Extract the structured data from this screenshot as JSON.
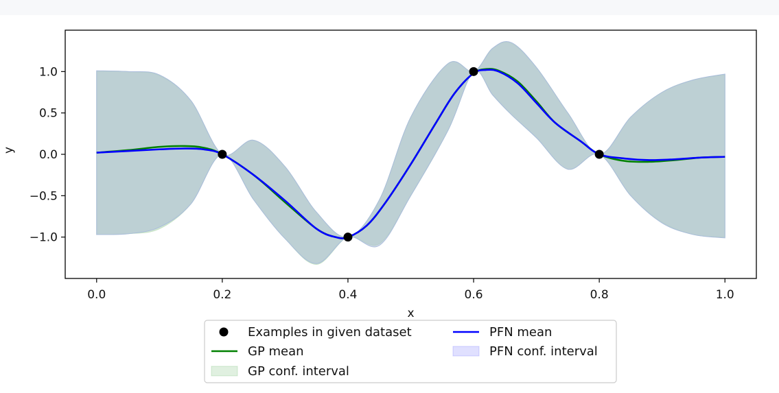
{
  "chart_data": {
    "type": "line",
    "xlabel": "x",
    "ylabel": "y",
    "xlim": [
      -0.05,
      1.05
    ],
    "ylim": [
      -1.5,
      1.5
    ],
    "x_ticks": [
      0.0,
      0.2,
      0.4,
      0.6,
      0.8,
      1.0
    ],
    "x_tick_labels": [
      "0.0",
      "0.2",
      "0.4",
      "0.6",
      "0.8",
      "1.0"
    ],
    "y_ticks": [
      1.0,
      0.5,
      0.0,
      -0.5,
      -1.0
    ],
    "y_tick_labels": [
      "1.0",
      "0.5",
      "0.0",
      "−0.5",
      "−1.0"
    ],
    "grid": false,
    "legend_position": "bottom-center (below axes)",
    "legend_columns": 2,
    "legend": [
      {
        "label": "Examples in given dataset",
        "kind": "marker",
        "color": "#000000"
      },
      {
        "label": "GP mean",
        "kind": "line",
        "color": "#008000"
      },
      {
        "label": "GP conf. interval",
        "kind": "fill",
        "color": "#008000",
        "alpha": 0.1
      },
      {
        "label": "PFN mean",
        "kind": "line",
        "color": "#0000ff"
      },
      {
        "label": "PFN conf. interval",
        "kind": "fill",
        "color": "#0000ff",
        "alpha": 0.1
      }
    ],
    "examples": {
      "x": [
        0.2,
        0.4,
        0.6,
        0.8
      ],
      "y": [
        0.0,
        -1.0,
        1.0,
        0.0
      ]
    },
    "series": [
      {
        "name": "GP mean",
        "color": "#008000",
        "x": [
          0.0,
          0.05,
          0.1,
          0.14,
          0.17,
          0.2,
          0.25,
          0.3,
          0.35,
          0.38,
          0.4,
          0.43,
          0.46,
          0.5,
          0.54,
          0.57,
          0.6,
          0.62,
          0.64,
          0.67,
          0.7,
          0.73,
          0.77,
          0.8,
          0.84,
          0.88,
          0.92,
          0.96,
          1.0
        ],
        "y": [
          0.02,
          0.05,
          0.09,
          0.1,
          0.08,
          0.0,
          -0.25,
          -0.58,
          -0.9,
          -1.0,
          -1.0,
          -0.86,
          -0.58,
          -0.12,
          0.38,
          0.74,
          0.98,
          1.03,
          1.01,
          0.88,
          0.64,
          0.38,
          0.16,
          0.0,
          -0.08,
          -0.09,
          -0.07,
          -0.04,
          -0.03
        ]
      },
      {
        "name": "PFN mean",
        "color": "#0000ff",
        "x": [
          0.0,
          0.05,
          0.1,
          0.14,
          0.17,
          0.2,
          0.25,
          0.3,
          0.35,
          0.38,
          0.4,
          0.43,
          0.46,
          0.5,
          0.54,
          0.57,
          0.6,
          0.62,
          0.64,
          0.67,
          0.7,
          0.73,
          0.77,
          0.8,
          0.84,
          0.88,
          0.92,
          0.96,
          1.0
        ],
        "y": [
          0.02,
          0.04,
          0.06,
          0.07,
          0.06,
          0.0,
          -0.25,
          -0.56,
          -0.9,
          -1.0,
          -1.0,
          -0.86,
          -0.58,
          -0.12,
          0.38,
          0.74,
          0.98,
          1.02,
          1.0,
          0.86,
          0.62,
          0.38,
          0.16,
          0.0,
          -0.05,
          -0.07,
          -0.06,
          -0.04,
          -0.03
        ]
      }
    ],
    "intervals": [
      {
        "name": "GP conf. interval",
        "color": "#008000",
        "x": [
          0.0,
          0.05,
          0.1,
          0.15,
          0.2,
          0.25,
          0.3,
          0.35,
          0.4,
          0.45,
          0.5,
          0.56,
          0.6,
          0.63,
          0.66,
          0.7,
          0.75,
          0.8,
          0.85,
          0.9,
          0.95,
          1.0
        ],
        "upper": [
          1.0,
          1.0,
          0.95,
          0.65,
          0.0,
          0.17,
          -0.15,
          -0.7,
          -1.0,
          -0.55,
          0.45,
          1.1,
          1.0,
          1.28,
          1.34,
          1.05,
          0.5,
          0.0,
          0.45,
          0.75,
          0.9,
          0.96
        ],
        "lower": [
          -0.97,
          -0.96,
          -0.9,
          -0.6,
          0.0,
          -0.55,
          -1.02,
          -1.33,
          -1.0,
          -1.08,
          -0.5,
          0.3,
          1.0,
          0.72,
          0.48,
          0.2,
          -0.18,
          0.0,
          -0.5,
          -0.82,
          -0.97,
          -1.0
        ]
      },
      {
        "name": "PFN conf. interval",
        "color": "#0000ff",
        "x": [
          0.0,
          0.05,
          0.1,
          0.15,
          0.2,
          0.25,
          0.3,
          0.35,
          0.4,
          0.45,
          0.5,
          0.56,
          0.6,
          0.63,
          0.66,
          0.7,
          0.75,
          0.8,
          0.85,
          0.9,
          0.95,
          1.0
        ],
        "upper": [
          1.01,
          1.0,
          0.96,
          0.65,
          0.0,
          0.17,
          -0.15,
          -0.7,
          -1.0,
          -0.55,
          0.45,
          1.1,
          1.0,
          1.28,
          1.35,
          1.05,
          0.5,
          0.0,
          0.45,
          0.75,
          0.9,
          0.97
        ],
        "lower": [
          -0.97,
          -0.96,
          -0.88,
          -0.6,
          0.0,
          -0.55,
          -1.02,
          -1.32,
          -1.0,
          -1.1,
          -0.5,
          0.3,
          1.0,
          0.72,
          0.48,
          0.2,
          -0.18,
          0.0,
          -0.5,
          -0.83,
          -0.97,
          -1.01
        ]
      }
    ]
  }
}
